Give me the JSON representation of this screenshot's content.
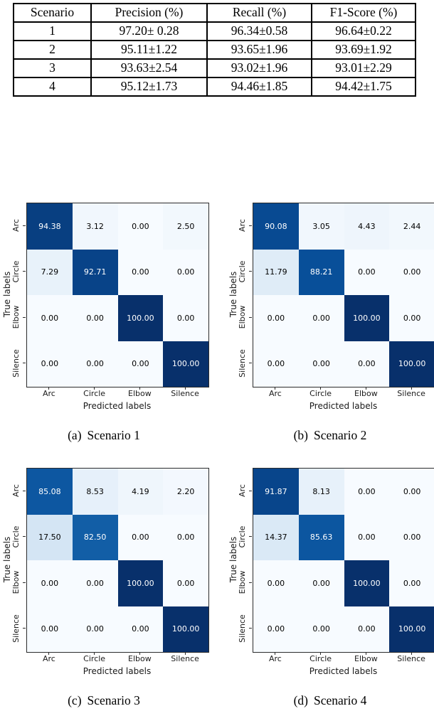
{
  "page": {
    "background": "#ffffff"
  },
  "table": {
    "headers": [
      "Scenario",
      "Precision (%)",
      "Recall (%)",
      "F1-Score (%)"
    ],
    "rows": [
      [
        "1",
        "97.20± 0.28",
        "96.34±0.58",
        "96.64±0.22"
      ],
      [
        "2",
        "95.11±1.22",
        "93.65±1.96",
        "93.69±1.92"
      ],
      [
        "3",
        "93.63±2.54",
        "93.02±1.96",
        "93.01±2.29"
      ],
      [
        "4",
        "95.12±1.73",
        "94.46±1.85",
        "94.42±1.75"
      ]
    ]
  },
  "chart_data": [
    {
      "type": "heatmap",
      "caption_label": "(a)",
      "caption_title": "Scenario 1",
      "xlabel": "Predicted labels",
      "ylabel": "True labels",
      "x_categories": [
        "Arc",
        "Circle",
        "Elbow",
        "Silence"
      ],
      "y_categories": [
        "Arc",
        "Circle",
        "Elbow",
        "Silence"
      ],
      "values": [
        [
          94.38,
          3.12,
          0.0,
          2.5
        ],
        [
          7.29,
          92.71,
          0.0,
          0.0
        ],
        [
          0.0,
          0.0,
          100.0,
          0.0
        ],
        [
          0.0,
          0.0,
          0.0,
          100.0
        ]
      ],
      "value_range": [
        0,
        100
      ],
      "colormap": "Blues",
      "grid": false,
      "legend": "none"
    },
    {
      "type": "heatmap",
      "caption_label": "(b)",
      "caption_title": "Scenario 2",
      "xlabel": "Predicted labels",
      "ylabel": "True labels",
      "x_categories": [
        "Arc",
        "Circle",
        "Elbow",
        "Silence"
      ],
      "y_categories": [
        "Arc",
        "Circle",
        "Elbow",
        "Silence"
      ],
      "values": [
        [
          90.08,
          3.05,
          4.43,
          2.44
        ],
        [
          11.79,
          88.21,
          0.0,
          0.0
        ],
        [
          0.0,
          0.0,
          100.0,
          0.0
        ],
        [
          0.0,
          0.0,
          0.0,
          100.0
        ]
      ],
      "value_range": [
        0,
        100
      ],
      "colormap": "Blues",
      "grid": false,
      "legend": "none"
    },
    {
      "type": "heatmap",
      "caption_label": "(c)",
      "caption_title": "Scenario 3",
      "xlabel": "Predicted labels",
      "ylabel": "True labels",
      "x_categories": [
        "Arc",
        "Circle",
        "Elbow",
        "Silence"
      ],
      "y_categories": [
        "Arc",
        "Circle",
        "Elbow",
        "Silence"
      ],
      "values": [
        [
          85.08,
          8.53,
          4.19,
          2.2
        ],
        [
          17.5,
          82.5,
          0.0,
          0.0
        ],
        [
          0.0,
          0.0,
          100.0,
          0.0
        ],
        [
          0.0,
          0.0,
          0.0,
          100.0
        ]
      ],
      "value_range": [
        0,
        100
      ],
      "colormap": "Blues",
      "grid": false,
      "legend": "none"
    },
    {
      "type": "heatmap",
      "caption_label": "(d)",
      "caption_title": "Scenario 4",
      "xlabel": "Predicted labels",
      "ylabel": "True labels",
      "x_categories": [
        "Arc",
        "Circle",
        "Elbow",
        "Silence"
      ],
      "y_categories": [
        "Arc",
        "Circle",
        "Elbow",
        "Silence"
      ],
      "values": [
        [
          91.87,
          8.13,
          0.0,
          0.0
        ],
        [
          14.37,
          85.63,
          0.0,
          0.0
        ],
        [
          0.0,
          0.0,
          100.0,
          0.0
        ],
        [
          0.0,
          0.0,
          0.0,
          100.0
        ]
      ],
      "value_range": [
        0,
        100
      ],
      "colormap": "Blues",
      "grid": false,
      "legend": "none"
    }
  ],
  "colors": {
    "blues_colormap_stops": [
      "#f7fbff",
      "#deebf7",
      "#c6dbef",
      "#9ecae1",
      "#6baed6",
      "#4292c6",
      "#2171b5",
      "#08519c",
      "#08306b"
    ],
    "cell_text_light": "#ffffff",
    "cell_text_dark": "#000000",
    "axis": "#2b2b2b",
    "text_threshold": 50
  }
}
